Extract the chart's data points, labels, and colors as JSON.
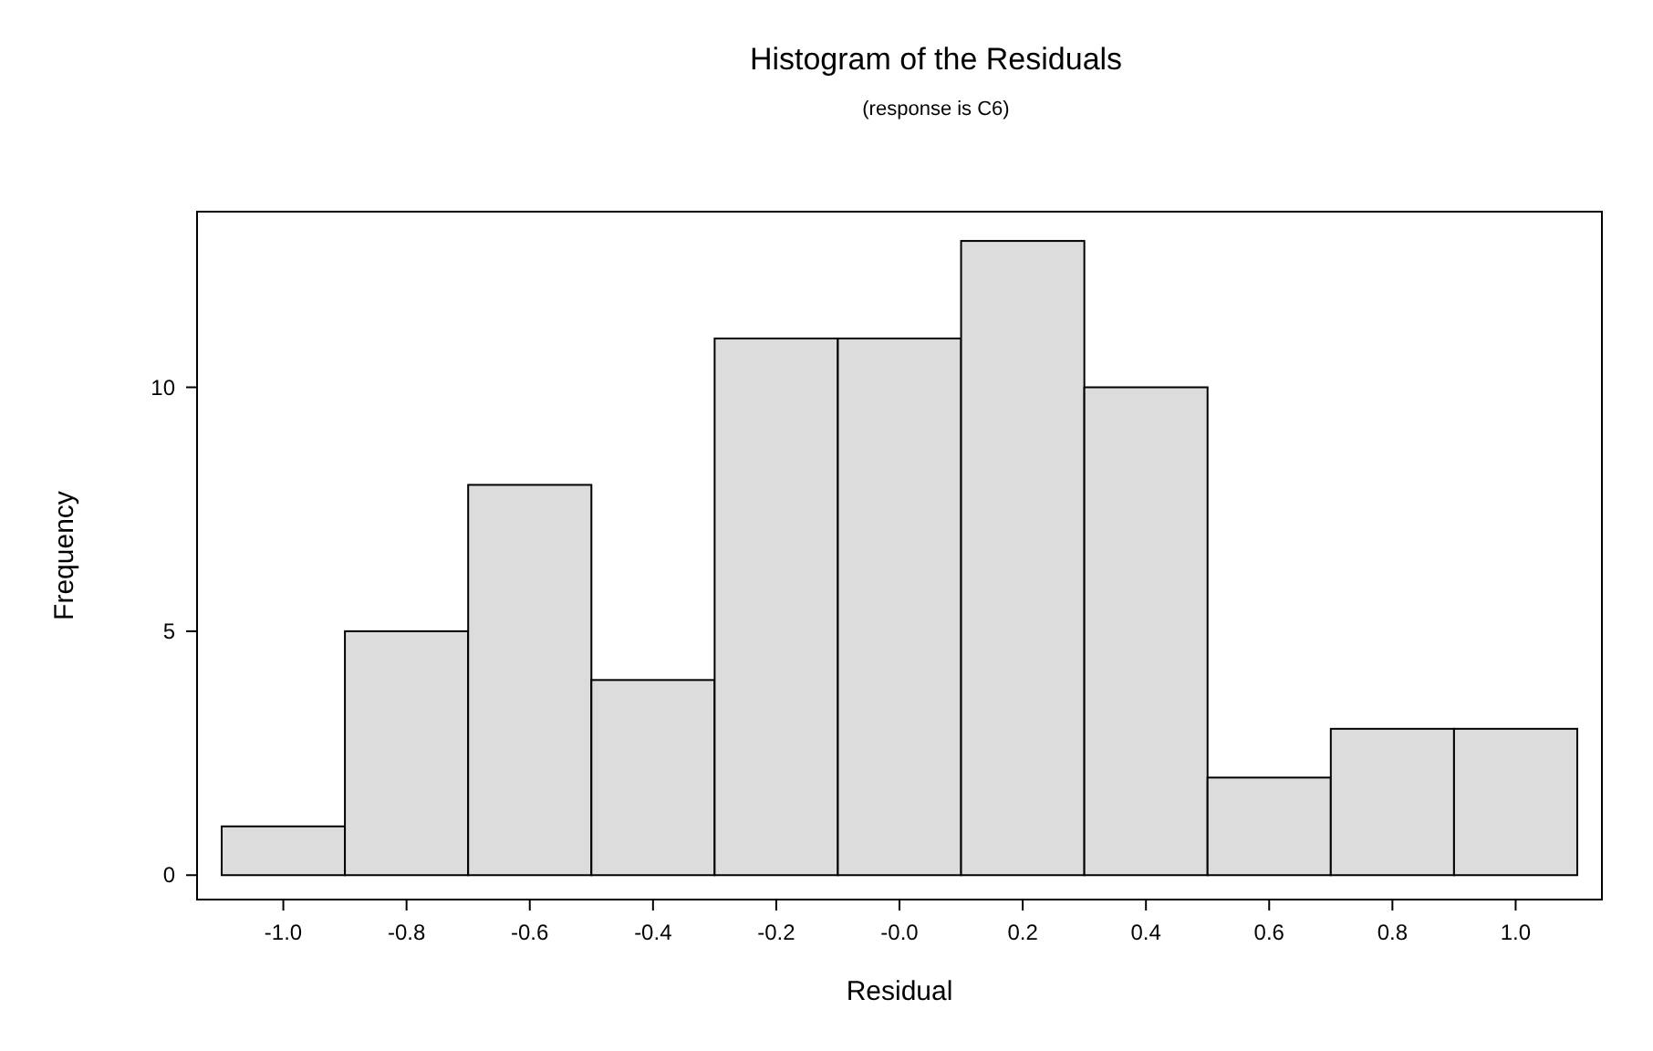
{
  "chart_data": {
    "type": "histogram",
    "title": "Histogram of the Residuals",
    "subtitle": "(response is C6)",
    "xlabel": "Residual",
    "ylabel": "Frequency",
    "bins": [
      -1.1,
      -0.9,
      -0.7,
      -0.5,
      -0.3,
      -0.1,
      0.1,
      0.3,
      0.5,
      0.7,
      0.9,
      1.1
    ],
    "values": [
      1,
      5,
      8,
      4,
      11,
      11,
      13,
      10,
      2,
      3,
      3
    ],
    "color": "#dcdcdc",
    "xlim": [
      -1.14,
      1.14
    ],
    "xticks": [
      {
        "value": -1,
        "label": "-1.0"
      },
      -0.8,
      -0.6,
      -0.4,
      -0.2,
      {
        "value": 0,
        "label": "-0.0"
      },
      0.2,
      0.4,
      0.6,
      0.8,
      {
        "value": 1,
        "label": "1.0"
      }
    ],
    "ylim": [
      -0.5,
      13.6
    ],
    "yticks": [
      0,
      5,
      10
    ],
    "grid": false
  }
}
